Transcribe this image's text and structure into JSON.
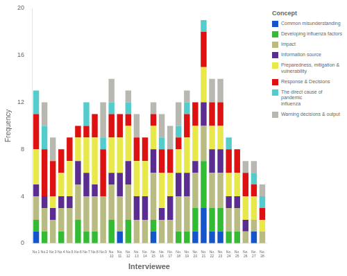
{
  "chart_data": {
    "type": "bar",
    "stacked": true,
    "xlabel": "Interviewee",
    "ylabel": "Frequency",
    "legend": "right",
    "legend_title": "Concept",
    "grid": false,
    "categories": [
      "No.1",
      "No.2",
      "No.3",
      "No.4",
      "No.5",
      "No.6",
      "No.7",
      "No.8",
      "No.9",
      "No.\n10",
      "No.\n11",
      "No.\n12",
      "No.\n13",
      "No.\n14",
      "No.\n15",
      "No.\n16",
      "No.\n17",
      "No.\n18",
      "No.\n19",
      "No.\n20",
      "No.\n21",
      "No.\n22",
      "No.\n23",
      "No.\n24",
      "No.\n25",
      "No.\n26",
      "No.\n27",
      "No.\n28"
    ],
    "series": [
      {
        "name": "Common misunderstanding",
        "color": "#1555cc",
        "values": [
          1,
          0,
          0,
          0,
          0,
          0,
          0,
          0,
          0,
          0,
          1,
          0,
          0,
          0,
          1,
          0,
          0,
          0,
          0,
          1,
          3,
          1,
          1,
          0,
          0,
          0,
          1,
          0
        ]
      },
      {
        "name": "Developing influenza factors",
        "color": "#33bb33",
        "values": [
          1,
          1,
          0,
          1,
          0,
          2,
          1,
          1,
          0,
          2,
          0,
          2,
          0,
          0,
          1,
          0,
          0,
          1,
          1,
          2,
          4,
          2,
          2,
          1,
          1,
          0,
          0,
          0
        ]
      },
      {
        "name": "Impact",
        "color": "#b8bc82",
        "values": [
          2,
          2,
          2,
          2,
          3,
          3,
          3,
          3,
          4,
          3,
          3,
          3,
          2,
          2,
          4,
          2,
          2,
          3,
          3,
          3,
          3,
          3,
          3,
          2,
          2,
          1,
          1,
          1
        ]
      },
      {
        "name": "Information source",
        "color": "#5c2d91",
        "values": [
          1,
          1,
          1,
          1,
          1,
          2,
          2,
          1,
          0,
          1,
          2,
          2,
          2,
          2,
          2,
          1,
          2,
          2,
          2,
          1,
          2,
          2,
          2,
          1,
          1,
          1,
          0,
          0
        ]
      },
      {
        "name": "Preparedness, mitigation &\nvulnerability",
        "color": "#e8e84a",
        "values": [
          3,
          0,
          1,
          2,
          3,
          2,
          3,
          4,
          0,
          3,
          3,
          3,
          3,
          3,
          2,
          3,
          2,
          2,
          3,
          3,
          3,
          2,
          2,
          2,
          2,
          2,
          2,
          1
        ]
      },
      {
        "name": "Response & Decisions",
        "color": "#dd1111",
        "values": [
          3,
          4,
          3,
          2,
          2,
          1,
          1,
          2,
          4,
          2,
          2,
          1,
          2,
          2,
          1,
          2,
          2,
          1,
          2,
          2,
          3,
          2,
          2,
          2,
          2,
          2,
          1,
          1
        ]
      },
      {
        "name": "The direct cause of pandemic\ninfluenza",
        "color": "#55cccc",
        "values": [
          2,
          2,
          0,
          0,
          0,
          0,
          2,
          0,
          1,
          1,
          0,
          1,
          0,
          0,
          0,
          1,
          0,
          1,
          1,
          0,
          1,
          0,
          0,
          1,
          0,
          0,
          1,
          1
        ]
      },
      {
        "name": "Warning decisions & output",
        "color": "#b8b8b0",
        "values": [
          0,
          2,
          2,
          0,
          0,
          0,
          0,
          0,
          3,
          2,
          0,
          1,
          2,
          0,
          1,
          2,
          2,
          2,
          1,
          0,
          0,
          2,
          2,
          0,
          0,
          1,
          1,
          1
        ]
      }
    ],
    "ylim": [
      0,
      20
    ],
    "yticks": [
      0,
      4,
      8,
      12,
      16,
      20
    ]
  }
}
